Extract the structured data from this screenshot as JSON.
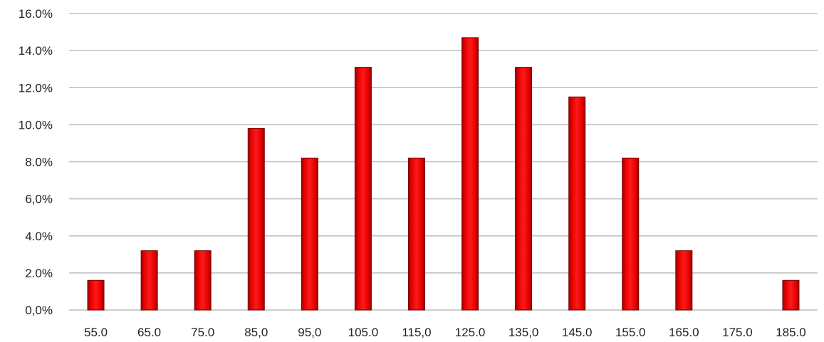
{
  "chart_data": {
    "type": "bar",
    "title": "",
    "xlabel": "",
    "ylabel": "",
    "categories": [
      "55.0",
      "65.0",
      "75.0",
      "85,0",
      "95,0",
      "105.0",
      "115,0",
      "125.0",
      "135,0",
      "145.0",
      "155.0",
      "165.0",
      "175.0",
      "185.0"
    ],
    "values": [
      1.6,
      3.2,
      3.2,
      9.8,
      8.2,
      13.1,
      8.2,
      14.7,
      13.1,
      11.5,
      8.2,
      3.2,
      0.0,
      1.6
    ],
    "y_unit": "percent",
    "ylim": [
      0,
      16
    ],
    "yticks": [
      "0,0%",
      "2.0%",
      "4.0%",
      "6,0%",
      "8.0%",
      "10.0%",
      "12.0%",
      "14.0%",
      "16.0%"
    ],
    "grid": true,
    "legend": "none",
    "bar_color": "#e00000",
    "bar_edge_color": "#7a0000",
    "gridline_color": "#bdbdbd"
  }
}
